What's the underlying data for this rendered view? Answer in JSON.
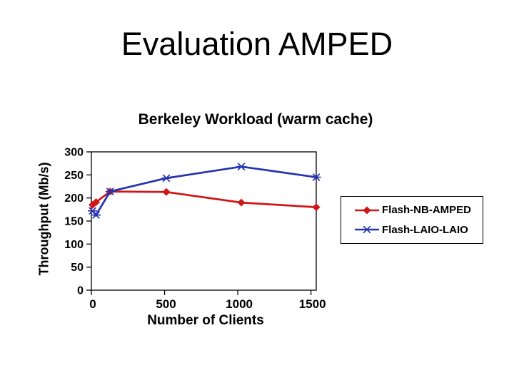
{
  "slide": {
    "title": "Evaluation AMPED",
    "background_color": "#ffffff",
    "text_color": "#000000"
  },
  "chart": {
    "title": "Berkeley Workload (warm cache)",
    "x_axis": {
      "label": "Number of Clients",
      "tick_labels": [
        "0",
        "500",
        "1000",
        "1500"
      ]
    },
    "y_axis": {
      "label": "Throughput (Mb/s)",
      "tick_labels": [
        "0",
        "50",
        "100",
        "150",
        "200",
        "250",
        "300"
      ]
    },
    "legend": [
      {
        "label": "Flash-NB-AMPED",
        "color": "#d01616",
        "marker": "diamond"
      },
      {
        "label": "Flash-LAIO-LAIO",
        "color": "#2433b0",
        "marker": "asterisk"
      }
    ]
  },
  "chart_data": {
    "type": "line",
    "title": "Berkeley Workload (warm cache)",
    "xlabel": "Number of Clients",
    "ylabel": "Throughput (Mb/s)",
    "x": [
      8,
      32,
      128,
      512,
      1024,
      1536
    ],
    "series": [
      {
        "name": "Flash-NB-AMPED",
        "color": "#d01616",
        "marker": "diamond",
        "values": [
          185,
          191,
          214,
          213,
          190,
          180
        ]
      },
      {
        "name": "Flash-LAIO-LAIO",
        "color": "#2433b0",
        "marker": "asterisk",
        "values": [
          172,
          163,
          214,
          243,
          268,
          245
        ]
      }
    ],
    "xlim": [
      0,
      1536
    ],
    "ylim": [
      0,
      300
    ],
    "x_ticks": [
      0,
      500,
      1000,
      1500
    ],
    "y_ticks": [
      0,
      50,
      100,
      150,
      200,
      250,
      300
    ],
    "grid": false,
    "plot_border": true,
    "legend_position": "right-outside",
    "axis_color": "#000000"
  }
}
